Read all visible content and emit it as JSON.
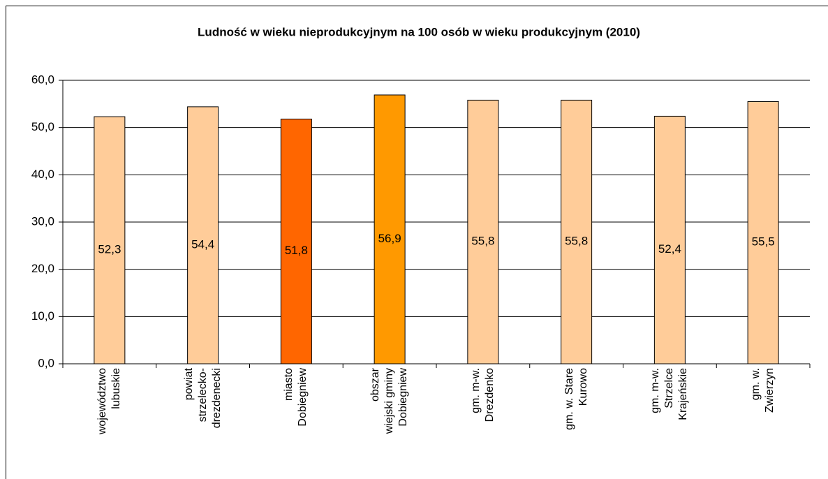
{
  "chart_data": {
    "type": "bar",
    "title": "Ludność w wieku nieprodukcyjnym na 100 osób w wieku produkcyjnym (2010)",
    "categories": [
      "województwo\nlubuskie",
      "powiat\nstrzelecko-\ndrezdenecki",
      "miasto\nDobiegniew",
      "obszar\nwiejski gminy\nDobiegniew",
      "gm. m-w.\nDrezdenko",
      "gm. w. Stare\nKurowo",
      "gm. m-w.\nStrzelce\nKrajeńskie",
      "gm. w.\nZwierzyn"
    ],
    "values": [
      52.3,
      54.4,
      51.8,
      56.9,
      55.8,
      55.8,
      52.4,
      55.5
    ],
    "value_labels": [
      "52,3",
      "54,4",
      "51,8",
      "56,9",
      "55,8",
      "55,8",
      "52,4",
      "55,5"
    ],
    "colors": [
      "#FFCC99",
      "#FFCC99",
      "#FF6600",
      "#FF9900",
      "#FFCC99",
      "#FFCC99",
      "#FFCC99",
      "#FFCC99"
    ],
    "ylim": [
      0,
      60
    ],
    "yticks": [
      {
        "value": 0,
        "label": "0,0"
      },
      {
        "value": 10,
        "label": "10,0"
      },
      {
        "value": 20,
        "label": "20,0"
      },
      {
        "value": 30,
        "label": "30,0"
      },
      {
        "value": 40,
        "label": "40,0"
      },
      {
        "value": 50,
        "label": "50,0"
      },
      {
        "value": 60,
        "label": "60,0"
      }
    ],
    "grid": true
  }
}
